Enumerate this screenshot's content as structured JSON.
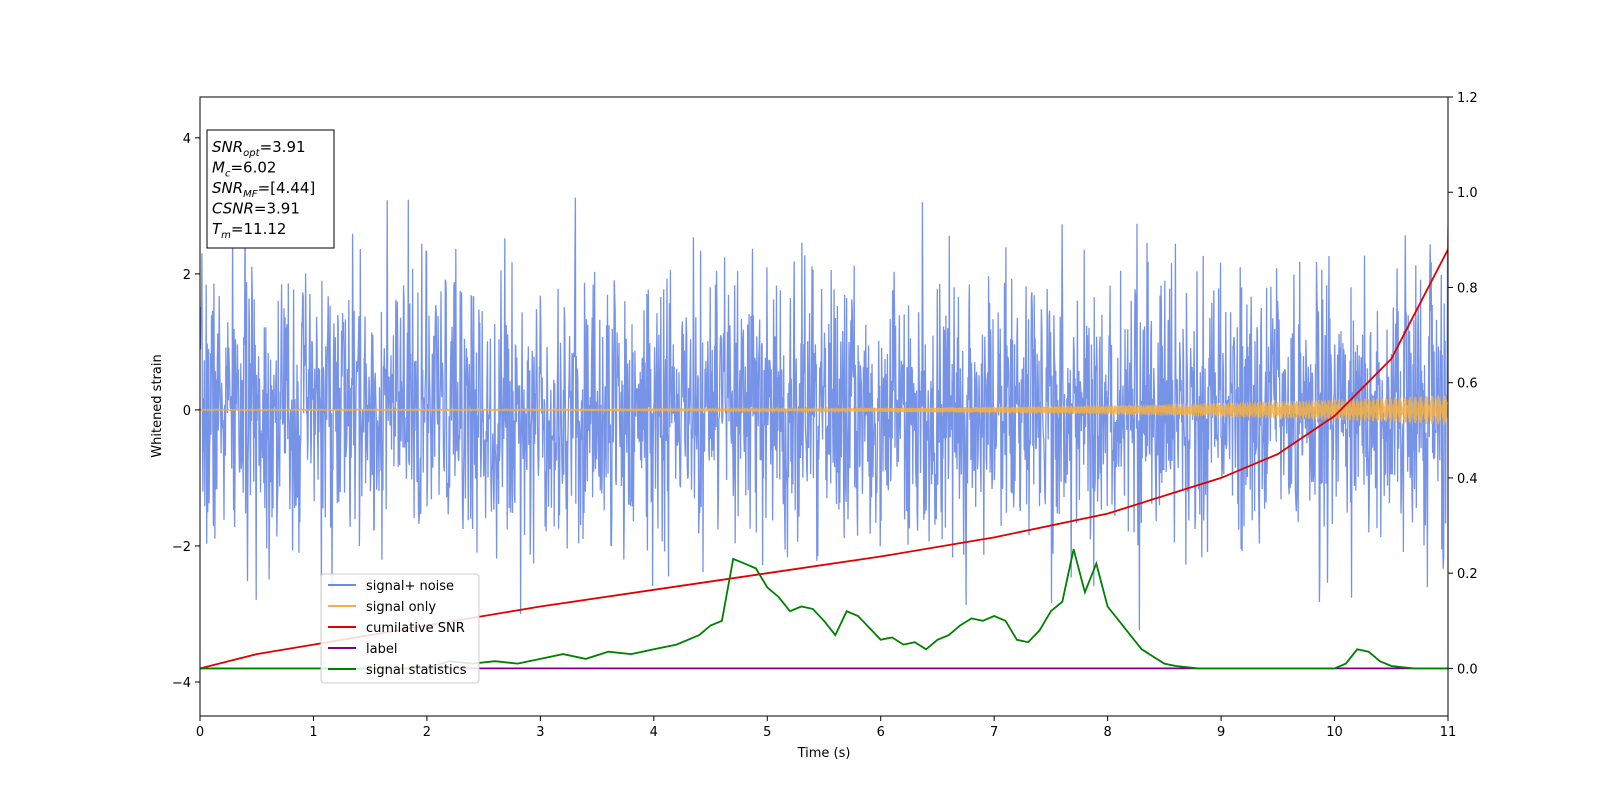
{
  "chart_data": {
    "type": "line",
    "xlabel": "Time (s)",
    "ylabel": "Whitened strain",
    "xlim": [
      0,
      11
    ],
    "ylim_left": [
      -4.5,
      4.6
    ],
    "ylim_right": [
      -0.1,
      1.2
    ],
    "x_ticks": [
      "0",
      "1",
      "2",
      "3",
      "4",
      "5",
      "6",
      "7",
      "8",
      "9",
      "10",
      "11"
    ],
    "y_ticks_left": [
      "4",
      "2",
      "0",
      "−2",
      "−4"
    ],
    "y_ticks_left_values": [
      4,
      2,
      0,
      -2,
      -4
    ],
    "y_ticks_right": [
      "1.2",
      "1.0",
      "0.8",
      "0.6",
      "0.4",
      "0.2",
      "0.0"
    ],
    "y_ticks_right_values": [
      1.2,
      1.0,
      0.8,
      0.6,
      0.4,
      0.2,
      0.0
    ],
    "legend_position": "lower-left",
    "series": [
      {
        "name": "signal+ noise",
        "color": "#6b8ae6",
        "axis": "left",
        "kind": "noise",
        "std": 1.0,
        "seed": 7
      },
      {
        "name": "signal only",
        "color": "#f5b041",
        "axis": "left",
        "kind": "chirp",
        "amplitude_start": 0.01,
        "amplitude_end": 0.22
      },
      {
        "name": "cumilative SNR",
        "color": "#e00000",
        "axis": "right",
        "x": [
          0,
          0.5,
          1,
          2,
          3,
          4,
          5,
          6,
          7,
          8,
          9,
          9.5,
          10,
          10.5,
          11
        ],
        "values": [
          0.0,
          0.03,
          0.05,
          0.09,
          0.13,
          0.165,
          0.2,
          0.235,
          0.275,
          0.325,
          0.4,
          0.45,
          0.53,
          0.65,
          0.88
        ]
      },
      {
        "name": "label",
        "color": "#800080",
        "axis": "right",
        "x": [
          0,
          11
        ],
        "values": [
          0.0,
          0.0
        ]
      },
      {
        "name": "signal statistics",
        "color": "#008000",
        "axis": "right",
        "x": [
          0,
          0.5,
          1,
          1.5,
          2,
          2.2,
          2.4,
          2.6,
          2.8,
          3,
          3.2,
          3.4,
          3.6,
          3.8,
          4,
          4.2,
          4.3,
          4.4,
          4.5,
          4.6,
          4.7,
          4.8,
          4.9,
          5,
          5.1,
          5.2,
          5.3,
          5.4,
          5.5,
          5.6,
          5.7,
          5.8,
          5.9,
          6,
          6.1,
          6.2,
          6.3,
          6.4,
          6.5,
          6.6,
          6.7,
          6.8,
          6.9,
          7,
          7.1,
          7.2,
          7.3,
          7.4,
          7.5,
          7.6,
          7.7,
          7.8,
          7.9,
          8,
          8.1,
          8.2,
          8.3,
          8.4,
          8.5,
          8.6,
          8.8,
          9,
          9.5,
          10,
          10.1,
          10.2,
          10.3,
          10.4,
          10.5,
          10.7,
          11
        ],
        "values": [
          0.0,
          0.0,
          0.0,
          0.0,
          0.0,
          0.015,
          0.01,
          0.015,
          0.01,
          0.02,
          0.03,
          0.02,
          0.035,
          0.03,
          0.04,
          0.05,
          0.06,
          0.07,
          0.09,
          0.1,
          0.23,
          0.22,
          0.21,
          0.17,
          0.15,
          0.12,
          0.13,
          0.125,
          0.1,
          0.07,
          0.12,
          0.11,
          0.085,
          0.06,
          0.065,
          0.05,
          0.055,
          0.04,
          0.06,
          0.07,
          0.09,
          0.105,
          0.1,
          0.11,
          0.1,
          0.06,
          0.055,
          0.08,
          0.12,
          0.14,
          0.25,
          0.16,
          0.22,
          0.13,
          0.1,
          0.07,
          0.04,
          0.025,
          0.01,
          0.005,
          0.0,
          0.0,
          0.0,
          0.0,
          0.01,
          0.04,
          0.035,
          0.015,
          0.005,
          0.0,
          0.0
        ]
      }
    ],
    "info_box": [
      {
        "base": "SNR",
        "sub": "opt",
        "value": "=3.91"
      },
      {
        "base": "M",
        "sub": "c",
        "value": "=6.02"
      },
      {
        "base": "SNR",
        "sub": "MF",
        "value": "=[4.44]"
      },
      {
        "base": "CSNR",
        "sub": "",
        "value": "=3.91"
      },
      {
        "base": "T",
        "sub": "m",
        "value": "=11.12"
      }
    ]
  }
}
